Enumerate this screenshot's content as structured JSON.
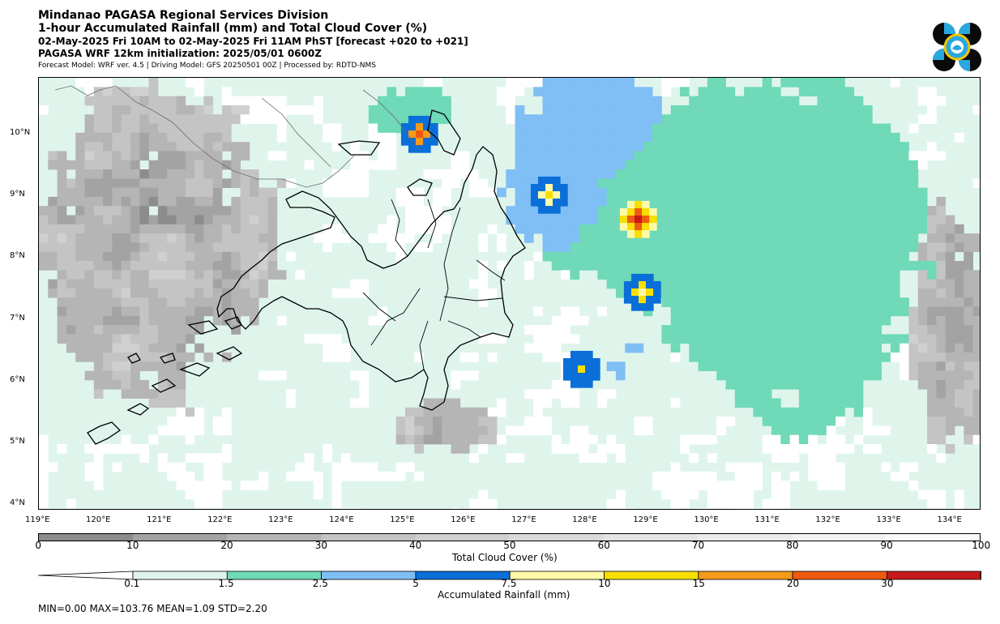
{
  "header": {
    "title": "Mindanao PAGASA Regional Services Division",
    "subtitle": "1-hour Accumulated Rainfall (mm) and Total Cloud Cover (%)",
    "period": "02-May-2025 Fri 10AM to 02-May-2025 Fri 11AM PhST [forecast +020 to +021]",
    "init": "PAGASA WRF 12km initialization: 2025/05/01 0600Z",
    "model_info": "Forecast Model: WRF ver. 4.5 | Driving Model: GFS 20250501 00Z | Processed by: RDTD-NMS"
  },
  "logo": {
    "icon": "pagasa-logo-icon",
    "colors": [
      "#0a0a0a",
      "#29a8e0",
      "#f2c500"
    ]
  },
  "map": {
    "lon_range": [
      119,
      134.5
    ],
    "lat_range": [
      3.9,
      10.9
    ],
    "lon_ticks": [
      "119°E",
      "120°E",
      "121°E",
      "122°E",
      "123°E",
      "124°E",
      "125°E",
      "126°E",
      "127°E",
      "128°E",
      "129°E",
      "130°E",
      "131°E",
      "132°E",
      "133°E",
      "134°E"
    ],
    "lat_ticks": [
      "10°N",
      "9°N",
      "8°N",
      "7°N",
      "6°N",
      "5°N",
      "4°N"
    ],
    "lon_values": [
      119,
      120,
      121,
      122,
      123,
      124,
      125,
      126,
      127,
      128,
      129,
      130,
      131,
      132,
      133,
      134
    ],
    "lat_values": [
      10,
      9,
      8,
      7,
      6,
      5,
      4
    ],
    "coastline_color": "#000000"
  },
  "cloud_cover": {
    "label": "Total Cloud Cover (%)",
    "ticks": [
      "0",
      "10",
      "20",
      "30",
      "40",
      "50",
      "60",
      "70",
      "80",
      "90",
      "100"
    ],
    "colors": [
      "#8c8c8c",
      "#a3a3a3",
      "#b5b5b5",
      "#c4c4c4",
      "#d0d0d0",
      "#dadada",
      "#e3e3e3",
      "#ebebeb",
      "#f2f2f2",
      "#f9f9f9"
    ]
  },
  "rainfall": {
    "label": "Accumulated Rainfall (mm)",
    "ticks": [
      "0.1",
      "1.5",
      "2.5",
      "5",
      "7.5",
      "10",
      "15",
      "20",
      "30"
    ],
    "colors": [
      "#dff5ec",
      "#6fd9b8",
      "#7fbff5",
      "#0a6fd8",
      "#fffaa8",
      "#f7e000",
      "#f59a1a",
      "#ef5a10",
      "#c61a1a"
    ],
    "over_color": "#c61a1a",
    "under_color": "#ffffff"
  },
  "stats": {
    "text": "MIN=0.00   MAX=103.76   MEAN=1.09   STD=2.20"
  }
}
